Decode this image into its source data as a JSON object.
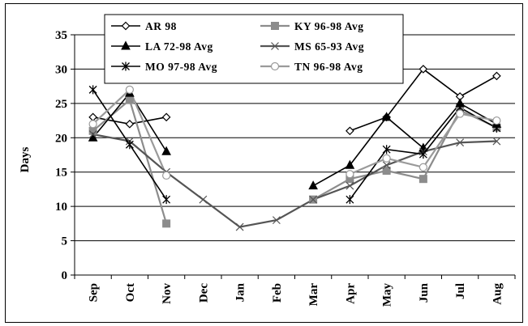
{
  "chart_data": {
    "type": "line",
    "ylabel": "Days",
    "xlabel": "",
    "ylim": [
      0,
      35
    ],
    "yticks": [
      0,
      5,
      10,
      15,
      20,
      25,
      30,
      35
    ],
    "grid": true,
    "legend_position": "top",
    "categories": [
      "Sep",
      "Oct",
      "Nov",
      "Dec",
      "Jan",
      "Feb",
      "Mar",
      "Apr",
      "May",
      "Jun",
      "Jul",
      "Aug"
    ],
    "series": [
      {
        "name": "AR 98",
        "marker": "diamond-open",
        "color": "#000000",
        "values": [
          23,
          22,
          23,
          null,
          null,
          null,
          null,
          21,
          23,
          30,
          26,
          29
        ]
      },
      {
        "name": "KY 96-98 Avg",
        "marker": "square-filled",
        "color": "#8c8c8c",
        "values": [
          21,
          25.5,
          7.5,
          null,
          null,
          null,
          11,
          14,
          15.2,
          14,
          24,
          21.5
        ]
      },
      {
        "name": "LA 72-98 Avg",
        "marker": "triangle-filled",
        "color": "#000000",
        "values": [
          20,
          26.5,
          18,
          null,
          null,
          null,
          13,
          16,
          23,
          18.5,
          25,
          22
        ]
      },
      {
        "name": "MS 65-93 Avg",
        "marker": "x",
        "color": "#555555",
        "values": [
          20.5,
          19.5,
          15,
          11,
          7,
          8,
          11,
          13,
          16,
          18,
          19.3,
          19.5
        ]
      },
      {
        "name": "MO 97-98 Avg",
        "marker": "asterisk",
        "color": "#000000",
        "values": [
          27,
          19,
          11,
          null,
          null,
          null,
          null,
          11,
          18.3,
          17.6,
          24.4,
          21.4
        ]
      },
      {
        "name": "TN 96-98 Avg",
        "marker": "circle-open",
        "color": "#9a9a9a",
        "values": [
          22,
          27,
          14.5,
          null,
          null,
          null,
          null,
          14.7,
          17,
          15.7,
          23.5,
          22.5
        ]
      }
    ]
  }
}
